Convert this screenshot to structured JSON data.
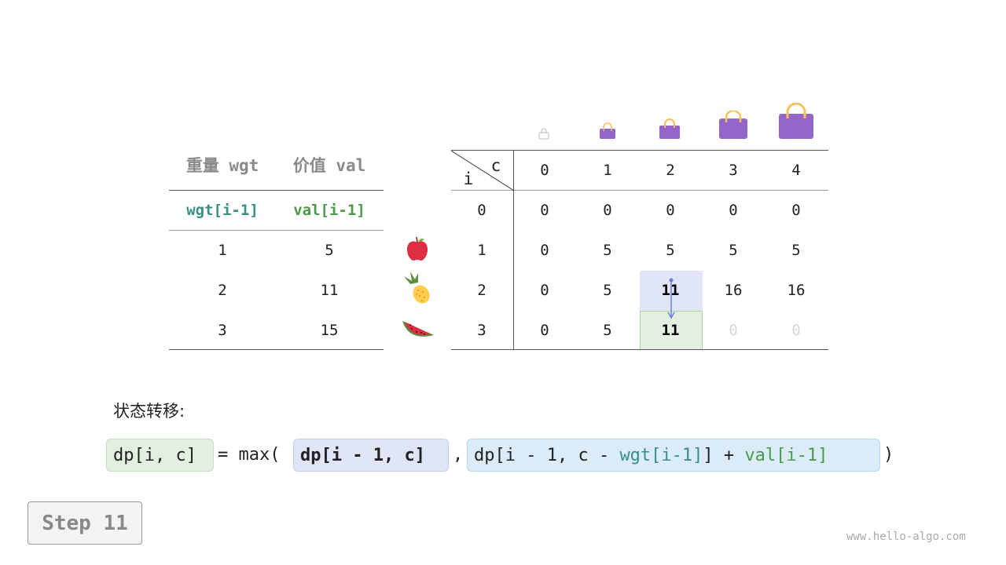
{
  "items_table": {
    "headers": [
      "重量 wgt",
      "价值 val"
    ],
    "subheaders": [
      "wgt[i-1]",
      "val[i-1]"
    ],
    "rows": [
      [
        "1",
        "5"
      ],
      [
        "2",
        "11"
      ],
      [
        "3",
        "15"
      ]
    ],
    "item_icons": [
      "apple-icon",
      "pineapple-icon",
      "watermelon-icon"
    ]
  },
  "dp_table": {
    "corner_row_label": "i",
    "corner_col_label": "c",
    "col_headers": [
      "0",
      "1",
      "2",
      "3",
      "4"
    ],
    "row_headers": [
      "0",
      "1",
      "2",
      "3"
    ],
    "cells": [
      [
        "0",
        "0",
        "0",
        "0",
        "0"
      ],
      [
        "0",
        "5",
        "5",
        "5",
        "5"
      ],
      [
        "0",
        "5",
        "11",
        "16",
        "16"
      ],
      [
        "0",
        "5",
        "11",
        "0",
        "0"
      ]
    ],
    "capacity_icons": [
      "bag-icon-0",
      "bag-icon-1",
      "bag-icon-2",
      "bag-icon-3",
      "bag-icon-4"
    ],
    "highlight_source": {
      "row": 2,
      "col": 2,
      "color": "#e1e5f8"
    },
    "highlight_target": {
      "row": 3,
      "col": 2,
      "color": "#e3f0e1"
    },
    "pending_cells_color": "#d6d6d6"
  },
  "formula": {
    "label": "状态转移:",
    "lhs": "dp[i, c]",
    "eq": "= max(",
    "arg1": "dp[i - 1, c]",
    "comma": ",",
    "arg2_prefix": "dp[i - 1, c - ",
    "arg2_wgt": "wgt[i-1]",
    "arg2_mid": "] + ",
    "arg2_val": "val[i-1]",
    "close": ")"
  },
  "step_label": "Step 11",
  "watermark": "www.hello-algo.com",
  "colors": {
    "teal": "#3a8f84",
    "green": "#4a9a4a",
    "bag": "#9566c9",
    "handle": "#f6c15b"
  }
}
